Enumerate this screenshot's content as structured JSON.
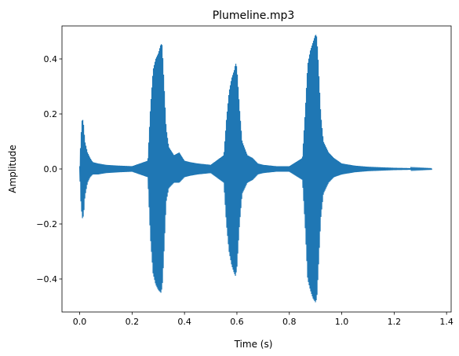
{
  "chart_data": {
    "type": "line",
    "title": "Plumeline.mp3",
    "xlabel": "Time (s)",
    "ylabel": "Amplitude",
    "xlim": [
      -0.0675,
      1.4175
    ],
    "ylim": [
      -0.52,
      0.52
    ],
    "x_ticks": [
      0.0,
      0.2,
      0.4,
      0.6,
      0.8,
      1.0,
      1.2,
      1.4
    ],
    "x_tick_labels": [
      "0.0",
      "0.2",
      "0.4",
      "0.6",
      "0.8",
      "1.0",
      "1.2",
      "1.4"
    ],
    "y_ticks": [
      -0.4,
      -0.2,
      0.0,
      0.2,
      0.4
    ],
    "y_tick_labels": [
      "−0.4",
      "−0.2",
      "0.0",
      "0.2",
      "0.4"
    ],
    "grid": false,
    "series": [
      {
        "color": "#1f77b4",
        "x": [
          0.0,
          0.005,
          0.01,
          0.015,
          0.02,
          0.03,
          0.04,
          0.05,
          0.07,
          0.1,
          0.15,
          0.2,
          0.26,
          0.27,
          0.28,
          0.29,
          0.3,
          0.31,
          0.315,
          0.32,
          0.33,
          0.34,
          0.36,
          0.38,
          0.4,
          0.42,
          0.45,
          0.5,
          0.55,
          0.56,
          0.57,
          0.58,
          0.59,
          0.595,
          0.6,
          0.61,
          0.62,
          0.64,
          0.66,
          0.68,
          0.7,
          0.75,
          0.8,
          0.85,
          0.86,
          0.87,
          0.88,
          0.89,
          0.9,
          0.905,
          0.91,
          0.92,
          0.93,
          0.95,
          0.97,
          1.0,
          1.05,
          1.1,
          1.15,
          1.2,
          1.25,
          1.3,
          1.345
        ],
        "upper": [
          0.01,
          0.12,
          0.19,
          0.16,
          0.1,
          0.06,
          0.04,
          0.025,
          0.02,
          0.015,
          0.012,
          0.01,
          0.03,
          0.22,
          0.36,
          0.4,
          0.42,
          0.455,
          0.45,
          0.35,
          0.15,
          0.08,
          0.05,
          0.06,
          0.03,
          0.025,
          0.02,
          0.015,
          0.05,
          0.18,
          0.28,
          0.33,
          0.36,
          0.385,
          0.37,
          0.22,
          0.1,
          0.05,
          0.04,
          0.02,
          0.015,
          0.01,
          0.01,
          0.04,
          0.2,
          0.38,
          0.43,
          0.46,
          0.49,
          0.48,
          0.4,
          0.2,
          0.1,
          0.06,
          0.04,
          0.02,
          0.012,
          0.008,
          0.006,
          0.004,
          0.003,
          0.002,
          0.001
        ],
        "lower": [
          -0.01,
          -0.13,
          -0.18,
          -0.17,
          -0.1,
          -0.05,
          -0.03,
          -0.02,
          -0.02,
          -0.015,
          -0.012,
          -0.01,
          -0.03,
          -0.25,
          -0.38,
          -0.42,
          -0.44,
          -0.45,
          -0.43,
          -0.34,
          -0.12,
          -0.07,
          -0.05,
          -0.05,
          -0.03,
          -0.025,
          -0.02,
          -0.015,
          -0.05,
          -0.2,
          -0.3,
          -0.35,
          -0.38,
          -0.39,
          -0.36,
          -0.2,
          -0.09,
          -0.05,
          -0.04,
          -0.02,
          -0.015,
          -0.01,
          -0.01,
          -0.04,
          -0.2,
          -0.4,
          -0.44,
          -0.47,
          -0.485,
          -0.47,
          -0.38,
          -0.18,
          -0.09,
          -0.05,
          -0.03,
          -0.02,
          -0.012,
          -0.008,
          -0.006,
          -0.004,
          -0.003,
          -0.002,
          -0.001
        ]
      }
    ]
  }
}
